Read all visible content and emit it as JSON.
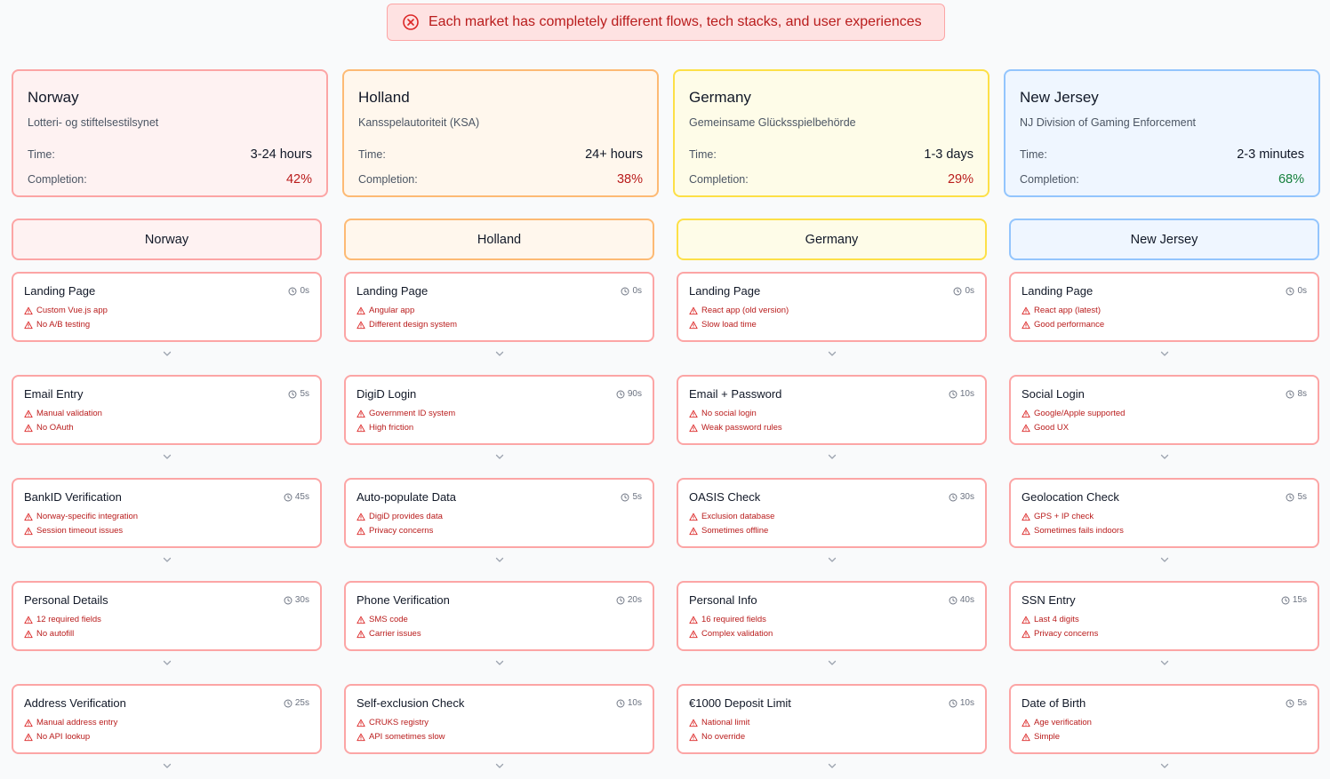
{
  "banner": {
    "icon": "x-circle-icon",
    "text": "Each market has completely different flows, tech stacks, and user experiences"
  },
  "labels": {
    "time": "Time:",
    "completion": "Completion:"
  },
  "colors": {
    "pass": "#15803d",
    "fail": "#b91c1c"
  },
  "markets": [
    {
      "name": "Norway",
      "authority": "Lotteri- og stiftelsestilsynet",
      "time": "3-24 hours",
      "completion": "42%",
      "completion_status": "fail",
      "bg": "#fef2f2",
      "border": "#fca5a5"
    },
    {
      "name": "Holland",
      "authority": "Kansspelautoriteit (KSA)",
      "time": "24+ hours",
      "completion": "38%",
      "completion_status": "fail",
      "bg": "#fff7ed",
      "border": "#fdba74"
    },
    {
      "name": "Germany",
      "authority": "Gemeinsame Glücksspielbehörde",
      "time": "1-3 days",
      "completion": "29%",
      "completion_status": "fail",
      "bg": "#fefce8",
      "border": "#fde047"
    },
    {
      "name": "New Jersey",
      "authority": "NJ Division of Gaming Enforcement",
      "time": "2-3 minutes",
      "completion": "68%",
      "completion_status": "pass",
      "bg": "#eff6ff",
      "border": "#93c5fd"
    }
  ],
  "flows": [
    {
      "name": "Norway",
      "steps": [
        {
          "title": "Landing Page",
          "time": "0s",
          "issues": [
            "Custom Vue.js app",
            "No A/B testing"
          ]
        },
        {
          "title": "Email Entry",
          "time": "5s",
          "issues": [
            "Manual validation",
            "No OAuth"
          ]
        },
        {
          "title": "BankID Verification",
          "time": "45s",
          "issues": [
            "Norway-specific integration",
            "Session timeout issues"
          ]
        },
        {
          "title": "Personal Details",
          "time": "30s",
          "issues": [
            "12 required fields",
            "No autofill"
          ]
        },
        {
          "title": "Address Verification",
          "time": "25s",
          "issues": [
            "Manual address entry",
            "No API lookup"
          ]
        }
      ]
    },
    {
      "name": "Holland",
      "steps": [
        {
          "title": "Landing Page",
          "time": "0s",
          "issues": [
            "Angular app",
            "Different design system"
          ]
        },
        {
          "title": "DigiD Login",
          "time": "90s",
          "issues": [
            "Government ID system",
            "High friction"
          ]
        },
        {
          "title": "Auto-populate Data",
          "time": "5s",
          "issues": [
            "DigiD provides data",
            "Privacy concerns"
          ]
        },
        {
          "title": "Phone Verification",
          "time": "20s",
          "issues": [
            "SMS code",
            "Carrier issues"
          ]
        },
        {
          "title": "Self-exclusion Check",
          "time": "10s",
          "issues": [
            "CRUKS registry",
            "API sometimes slow"
          ]
        }
      ]
    },
    {
      "name": "Germany",
      "steps": [
        {
          "title": "Landing Page",
          "time": "0s",
          "issues": [
            "React app (old version)",
            "Slow load time"
          ]
        },
        {
          "title": "Email + Password",
          "time": "10s",
          "issues": [
            "No social login",
            "Weak password rules"
          ]
        },
        {
          "title": "OASIS Check",
          "time": "30s",
          "issues": [
            "Exclusion database",
            "Sometimes offline"
          ]
        },
        {
          "title": "Personal Info",
          "time": "40s",
          "issues": [
            "16 required fields",
            "Complex validation"
          ]
        },
        {
          "title": "€1000 Deposit Limit",
          "time": "10s",
          "issues": [
            "National limit",
            "No override"
          ]
        }
      ]
    },
    {
      "name": "New Jersey",
      "steps": [
        {
          "title": "Landing Page",
          "time": "0s",
          "issues": [
            "React app (latest)",
            "Good performance"
          ]
        },
        {
          "title": "Social Login",
          "time": "8s",
          "issues": [
            "Google/Apple supported",
            "Good UX"
          ]
        },
        {
          "title": "Geolocation Check",
          "time": "5s",
          "issues": [
            "GPS + IP check",
            "Sometimes fails indoors"
          ]
        },
        {
          "title": "SSN Entry",
          "time": "15s",
          "issues": [
            "Last 4 digits",
            "Privacy concerns"
          ]
        },
        {
          "title": "Date of Birth",
          "time": "5s",
          "issues": [
            "Age verification",
            "Simple"
          ]
        }
      ]
    }
  ]
}
